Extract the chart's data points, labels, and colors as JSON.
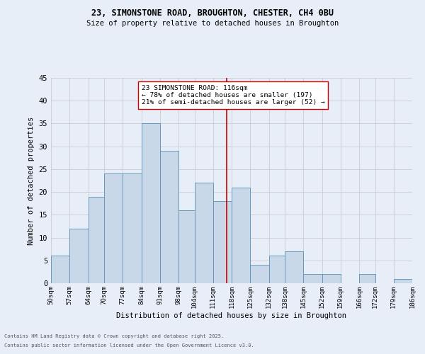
{
  "title_line1": "23, SIMONSTONE ROAD, BROUGHTON, CHESTER, CH4 0BU",
  "title_line2": "Size of property relative to detached houses in Broughton",
  "xlabel": "Distribution of detached houses by size in Broughton",
  "ylabel": "Number of detached properties",
  "bins": [
    50,
    57,
    64,
    70,
    77,
    84,
    91,
    98,
    104,
    111,
    118,
    125,
    132,
    138,
    145,
    152,
    159,
    166,
    172,
    179,
    186
  ],
  "counts": [
    6,
    12,
    19,
    24,
    24,
    35,
    29,
    16,
    22,
    18,
    21,
    4,
    6,
    7,
    2,
    2,
    0,
    2,
    0,
    1
  ],
  "bar_color": "#c8d8e8",
  "bar_edge_color": "#6699bb",
  "grid_color": "#cccccc",
  "background_color": "#e8eef8",
  "vline_x": 116,
  "vline_color": "#cc0000",
  "annotation_title": "23 SIMONSTONE ROAD: 116sqm",
  "annotation_line1": "← 78% of detached houses are smaller (197)",
  "annotation_line2": "21% of semi-detached houses are larger (52) →",
  "annotation_box_color": "#ffffff",
  "annotation_box_edge_color": "#cc0000",
  "ylim": [
    0,
    45
  ],
  "yticks": [
    0,
    5,
    10,
    15,
    20,
    25,
    30,
    35,
    40,
    45
  ],
  "tick_labels": [
    "50sqm",
    "57sqm",
    "64sqm",
    "70sqm",
    "77sqm",
    "84sqm",
    "91sqm",
    "98sqm",
    "104sqm",
    "111sqm",
    "118sqm",
    "125sqm",
    "132sqm",
    "138sqm",
    "145sqm",
    "152sqm",
    "159sqm",
    "166sqm",
    "172sqm",
    "179sqm",
    "186sqm"
  ],
  "footnote_line1": "Contains HM Land Registry data © Crown copyright and database right 2025.",
  "footnote_line2": "Contains public sector information licensed under the Open Government Licence v3.0."
}
